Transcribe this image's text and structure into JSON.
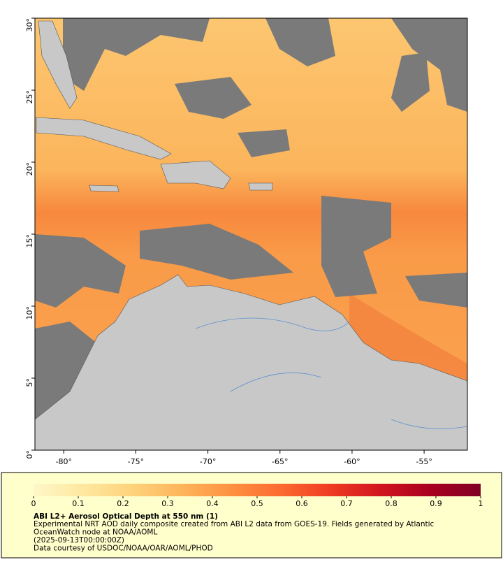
{
  "map": {
    "xlim": [
      -82,
      -52
    ],
    "ylim": [
      0,
      30
    ],
    "xticks": [
      {
        "value": -80,
        "label": "-80°"
      },
      {
        "value": -75,
        "label": "-75°"
      },
      {
        "value": -70,
        "label": "-70°"
      },
      {
        "value": -65,
        "label": "-65°"
      },
      {
        "value": -60,
        "label": "-60°"
      },
      {
        "value": -55,
        "label": "-55°"
      }
    ],
    "yticks": [
      {
        "value": 0,
        "label": "0°"
      },
      {
        "value": 5,
        "label": "5°"
      },
      {
        "value": 10,
        "label": "10°"
      },
      {
        "value": 15,
        "label": "15°"
      },
      {
        "value": 20,
        "label": "20°"
      },
      {
        "value": 25,
        "label": "25°"
      },
      {
        "value": 30,
        "label": "30°"
      }
    ]
  },
  "colorbar": {
    "lim": [
      0,
      1
    ],
    "ticks": [
      0,
      0.1,
      0.2,
      0.3,
      0.4,
      0.5,
      0.6,
      0.7,
      0.8,
      0.9,
      1
    ],
    "colors": [
      "#fff7c8",
      "#fee8a0",
      "#fed27a",
      "#feb45a",
      "#fd9040",
      "#fc6a30",
      "#ee3a22",
      "#d0141e",
      "#a8001e",
      "#800026"
    ]
  },
  "caption": {
    "title": "ABI L2+ Aerosol Optical Depth at 550 nm (1)",
    "lines": [
      "Experimental NRT AOD daily composite created from ABI L2 data from GOES-19. Fields generated by Atlantic",
      "OceanWatch node at NOAA/AOML",
      "(2025-09-13T00:00:00Z)",
      "Data courtesy of USDOC/NOAA/OAR/AOML/PHOD"
    ]
  }
}
